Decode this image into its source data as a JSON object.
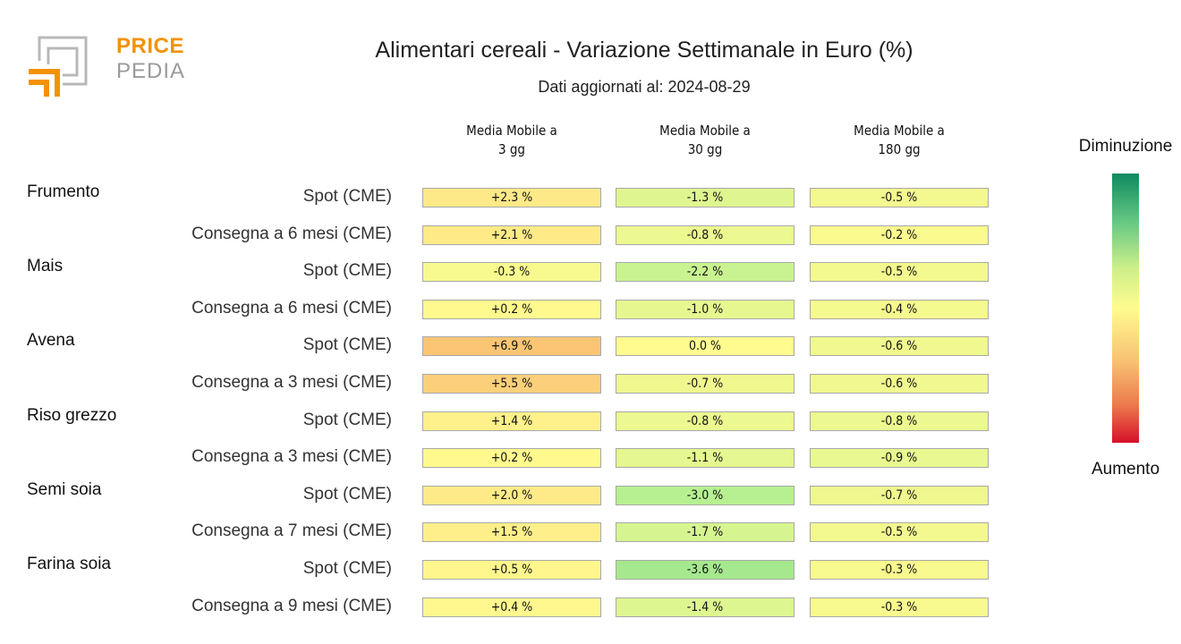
{
  "logo": {
    "word_top": "PRICE",
    "word_bottom": "PEDIA"
  },
  "chart_data": {
    "type": "heatmap",
    "title": "Alimentari cereali - Variazione Settimanale in Euro (%)",
    "subtitle": "Dati aggiornati al: 2024-08-29",
    "columns": [
      "Media Mobile a\n3 gg",
      "Media Mobile a\n30 gg",
      "Media Mobile a\n180 gg"
    ],
    "groups": [
      {
        "name": "Frumento",
        "rows": [
          {
            "label": "Spot (CME)",
            "values": [
              2.3,
              -1.3,
              -0.5
            ],
            "text": [
              "+2.3 %",
              "-1.3 %",
              "-0.5 %"
            ]
          },
          {
            "label": "Consegna a 6 mesi (CME)",
            "values": [
              2.1,
              -0.8,
              -0.2
            ],
            "text": [
              "+2.1 %",
              "-0.8 %",
              "-0.2 %"
            ]
          }
        ]
      },
      {
        "name": "Mais",
        "rows": [
          {
            "label": "Spot (CME)",
            "values": [
              -0.3,
              -2.2,
              -0.5
            ],
            "text": [
              "-0.3 %",
              "-2.2 %",
              "-0.5 %"
            ]
          },
          {
            "label": "Consegna a 6 mesi (CME)",
            "values": [
              0.2,
              -1.0,
              -0.4
            ],
            "text": [
              "+0.2 %",
              "-1.0 %",
              "-0.4 %"
            ]
          }
        ]
      },
      {
        "name": "Avena",
        "rows": [
          {
            "label": "Spot (CME)",
            "values": [
              6.9,
              0.0,
              -0.6
            ],
            "text": [
              "+6.9 %",
              "0.0 %",
              "-0.6 %"
            ]
          },
          {
            "label": "Consegna a 3 mesi (CME)",
            "values": [
              5.5,
              -0.7,
              -0.6
            ],
            "text": [
              "+5.5 %",
              "-0.7 %",
              "-0.6 %"
            ]
          }
        ]
      },
      {
        "name": "Riso grezzo",
        "rows": [
          {
            "label": "Spot (CME)",
            "values": [
              1.4,
              -0.8,
              -0.8
            ],
            "text": [
              "+1.4 %",
              "-0.8 %",
              "-0.8 %"
            ]
          },
          {
            "label": "Consegna a 3 mesi (CME)",
            "values": [
              0.2,
              -1.1,
              -0.9
            ],
            "text": [
              "+0.2 %",
              "-1.1 %",
              "-0.9 %"
            ]
          }
        ]
      },
      {
        "name": "Semi soia",
        "rows": [
          {
            "label": "Spot (CME)",
            "values": [
              2.0,
              -3.0,
              -0.7
            ],
            "text": [
              "+2.0 %",
              "-3.0 %",
              "-0.7 %"
            ]
          },
          {
            "label": "Consegna a 7 mesi (CME)",
            "values": [
              1.5,
              -1.7,
              -0.5
            ],
            "text": [
              "+1.5 %",
              "-1.7 %",
              "-0.5 %"
            ]
          }
        ]
      },
      {
        "name": "Farina soia",
        "rows": [
          {
            "label": "Spot (CME)",
            "values": [
              0.5,
              -3.6,
              -0.3
            ],
            "text": [
              "+0.5 %",
              "-3.6 %",
              "-0.3 %"
            ]
          },
          {
            "label": "Consegna a 9 mesi (CME)",
            "values": [
              0.4,
              -1.4,
              -0.3
            ],
            "text": [
              "+0.4 %",
              "-1.4 %",
              "-0.3 %"
            ]
          }
        ]
      }
    ],
    "colorbar": {
      "top_label": "Diminuzione",
      "bottom_label": "Aumento"
    },
    "colors": {
      "strong_decrease": "#0f8a5f",
      "neutral": "#fffb8f",
      "strong_increase": "#d7102a"
    }
  }
}
